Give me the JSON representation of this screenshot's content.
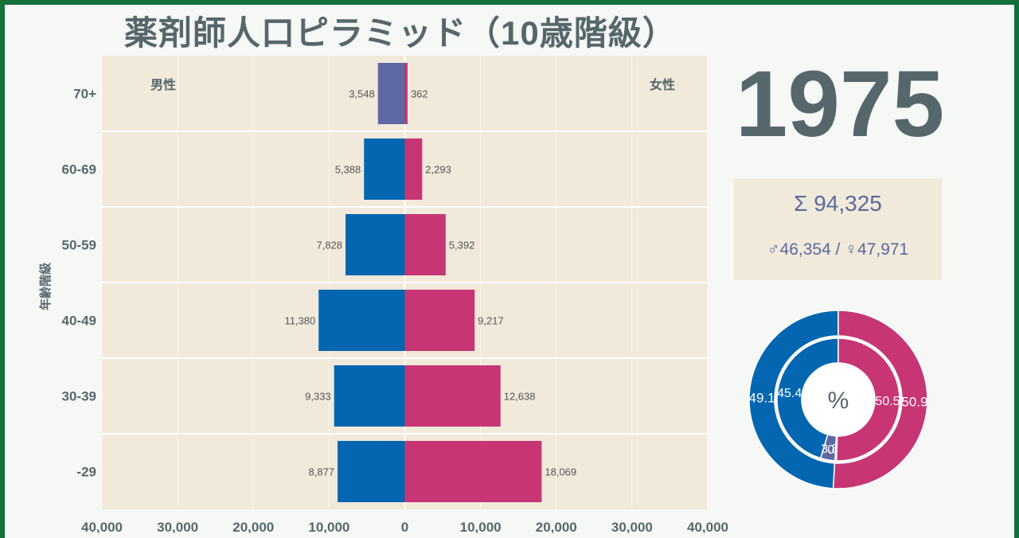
{
  "title": "薬剤師人口ピラミッド（10歳階級）",
  "year": "1975",
  "summary": {
    "total": "Σ 94,325",
    "male_female": "♂46,354 / ♀47,971"
  },
  "donut": {
    "center_label": "%"
  },
  "colors": {
    "male": "#0466b0",
    "female": "#c73574",
    "male_70": "#5e68a3",
    "plot_bg": "#f1e9da",
    "text": "#56676b"
  },
  "chart_data": [
    {
      "type": "bar",
      "orientation": "horizontal",
      "ylabel": "年齢階級",
      "xlim": [
        -40000,
        40000
      ],
      "xticks": [
        -40000,
        -30000,
        -20000,
        -10000,
        0,
        10000,
        20000,
        30000,
        40000
      ],
      "xtick_labels": [
        "40,000",
        "30,000",
        "20,000",
        "10,000",
        "0",
        "10,000",
        "20,000",
        "30,000",
        "40,000"
      ],
      "side_labels": {
        "left": "男性",
        "right": "女性"
      },
      "categories": [
        "-29",
        "30-39",
        "40-49",
        "50-59",
        "60-69",
        "70+"
      ],
      "series": [
        {
          "name": "男性",
          "values": [
            8877,
            9333,
            11380,
            7828,
            5388,
            3548
          ],
          "labels": [
            "8,877",
            "9,333",
            "11,380",
            "7,828",
            "5,388",
            "3,548"
          ]
        },
        {
          "name": "女性",
          "values": [
            18069,
            12638,
            9217,
            5392,
            2293,
            362
          ],
          "labels": [
            "18,069",
            "12,638",
            "9,217",
            "5,392",
            "2,293",
            "362"
          ]
        }
      ]
    },
    {
      "type": "pie",
      "subtype": "nested-donut",
      "rings": [
        {
          "name": "outer",
          "values": [
            49.1,
            50.9
          ],
          "labels": [
            "49.1",
            "50.9"
          ],
          "colors": [
            "#0466b0",
            "#c73574"
          ]
        },
        {
          "name": "inner",
          "values": [
            45.4,
            3.8,
            0.4,
            50.5
          ],
          "labels": [
            "45.4",
            "3.8",
            "0.4",
            "50.5"
          ],
          "colors": [
            "#0466b0",
            "#5e68a3",
            "#c73574",
            "#c73574"
          ]
        }
      ]
    }
  ]
}
